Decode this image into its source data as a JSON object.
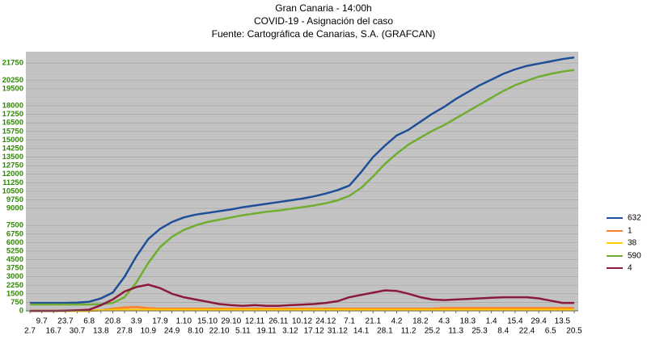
{
  "chart_data": {
    "type": "line",
    "title": "Gran Canaria - 14:00h",
    "subtitle": "COVID-19 - Asignación del caso",
    "source": "Fuente: Cartográfica de Canarias, S.A. (GRAFCAN)",
    "categories": [
      "2.7",
      "9.7",
      "16.7",
      "23.7",
      "30.7",
      "6.8",
      "13.8",
      "20.8",
      "27.8",
      "3.9",
      "10.9",
      "17.9",
      "24.9",
      "1.10",
      "8.10",
      "15.10",
      "22.10",
      "29.10",
      "5.11",
      "12.11",
      "19.11",
      "26.11",
      "3.12",
      "10.12",
      "17.12",
      "24.12",
      "31.12",
      "7.1",
      "14.1",
      "21.1",
      "28.1",
      "4.2",
      "11.2",
      "18.2",
      "25.2",
      "4.3",
      "11.3",
      "18.3",
      "25.3",
      "1.4",
      "8.4",
      "15.4",
      "22.4",
      "29.4",
      "6.5",
      "13.5",
      "20.5"
    ],
    "series": [
      {
        "name": "632",
        "color": "#1f4e99",
        "values": [
          700,
          700,
          700,
          700,
          720,
          800,
          1100,
          1600,
          3000,
          4800,
          6300,
          7200,
          7800,
          8200,
          8450,
          8600,
          8750,
          8900,
          9100,
          9250,
          9400,
          9550,
          9700,
          9850,
          10050,
          10300,
          10600,
          11000,
          12200,
          13500,
          14500,
          15400,
          15900,
          16600,
          17300,
          17900,
          18600,
          19200,
          19800,
          20300,
          20800,
          21200,
          21500,
          21700,
          21900,
          22100,
          22250
        ]
      },
      {
        "name": "1",
        "color": "#ff7f27",
        "values": [
          0,
          0,
          0,
          0,
          0,
          0,
          50,
          200,
          300,
          350,
          250,
          200,
          200,
          200,
          200,
          200,
          200,
          200,
          200,
          200,
          200,
          200,
          200,
          200,
          200,
          200,
          200,
          200,
          200,
          200,
          200,
          200,
          200,
          200,
          200,
          250,
          250,
          250,
          250,
          250,
          250,
          250,
          250,
          250,
          250,
          250,
          250
        ]
      },
      {
        "name": "38",
        "color": "#ffcc00",
        "values": [
          0,
          0,
          0,
          0,
          0,
          20,
          50,
          80,
          100,
          100,
          100,
          100,
          100,
          100,
          100,
          100,
          100,
          100,
          100,
          100,
          100,
          100,
          100,
          100,
          100,
          100,
          100,
          100,
          100,
          100,
          100,
          100,
          100,
          100,
          100,
          100,
          100,
          100,
          100,
          100,
          100,
          100,
          100,
          100,
          100,
          100,
          100
        ]
      },
      {
        "name": "590",
        "color": "#70ad30",
        "values": [
          560,
          560,
          560,
          560,
          560,
          560,
          580,
          700,
          1200,
          2500,
          4200,
          5600,
          6500,
          7100,
          7500,
          7800,
          8000,
          8200,
          8400,
          8550,
          8700,
          8800,
          8950,
          9100,
          9250,
          9450,
          9700,
          10100,
          10800,
          11800,
          12900,
          13800,
          14600,
          15200,
          15800,
          16300,
          16900,
          17500,
          18100,
          18700,
          19300,
          19800,
          20200,
          20550,
          20800,
          21000,
          21150
        ]
      },
      {
        "name": "4",
        "color": "#8b1a3a",
        "values": [
          0,
          0,
          0,
          20,
          50,
          100,
          500,
          1000,
          1700,
          2100,
          2300,
          2000,
          1500,
          1200,
          1000,
          800,
          600,
          500,
          450,
          500,
          450,
          450,
          500,
          550,
          600,
          700,
          850,
          1200,
          1400,
          1600,
          1800,
          1750,
          1500,
          1200,
          1000,
          950,
          1000,
          1050,
          1100,
          1150,
          1200,
          1200,
          1200,
          1100,
          900,
          700,
          700
        ]
      }
    ],
    "ylim": [
      0,
      22750
    ],
    "yticks": [
      0,
      750,
      1500,
      2250,
      3000,
      3750,
      4500,
      5250,
      6000,
      6750,
      7500,
      9000,
      9750,
      10500,
      11250,
      12000,
      12750,
      13500,
      14250,
      15000,
      15750,
      16500,
      17250,
      18000,
      19500,
      20250,
      21750
    ],
    "grid": true,
    "legend": "right"
  }
}
